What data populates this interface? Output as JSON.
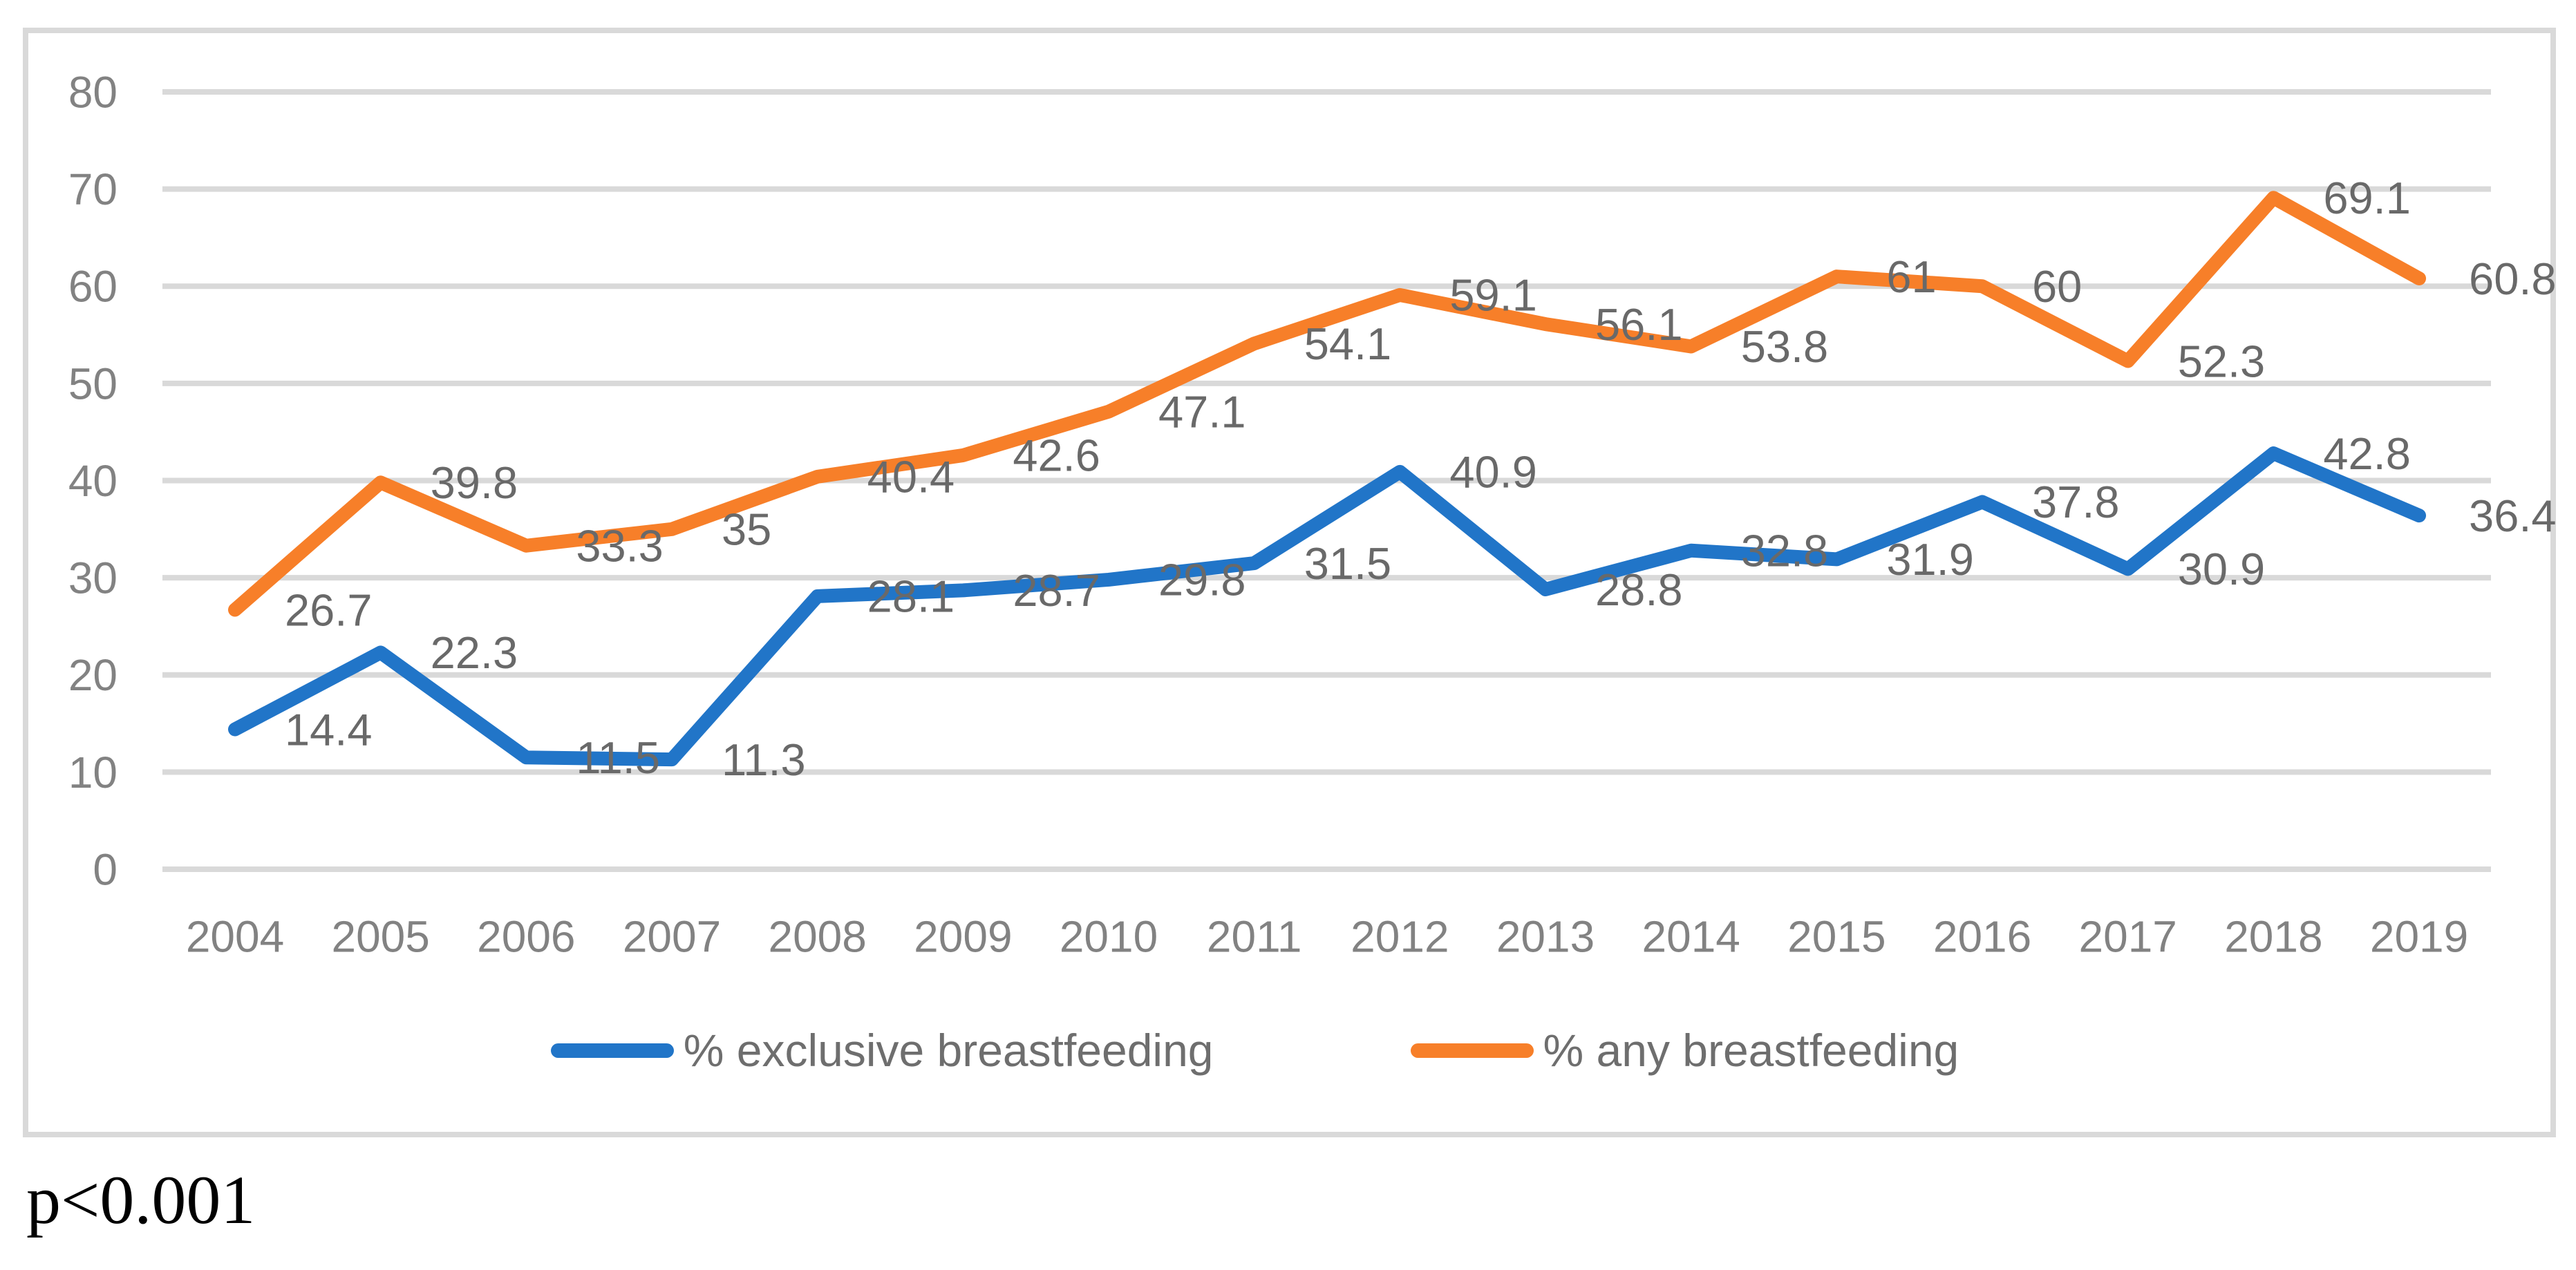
{
  "figure": {
    "p_value_note": "p<0.001"
  },
  "chart_data": {
    "type": "line",
    "title": "",
    "xlabel": "",
    "ylabel": "",
    "categories": [
      "2004",
      "2005",
      "2006",
      "2007",
      "2008",
      "2009",
      "2010",
      "2011",
      "2012",
      "2013",
      "2014",
      "2015",
      "2016",
      "2017",
      "2018",
      "2019"
    ],
    "series": [
      {
        "name": "% exclusive breastfeeding",
        "color": "#2175C8",
        "values": [
          14.4,
          22.3,
          11.5,
          11.3,
          28.1,
          28.7,
          29.8,
          31.5,
          40.9,
          28.8,
          32.8,
          31.9,
          37.8,
          30.9,
          42.8,
          36.4
        ]
      },
      {
        "name": "% any breastfeeding",
        "color": "#F77F29",
        "values": [
          26.7,
          39.8,
          33.3,
          35,
          40.4,
          42.6,
          47.1,
          54.1,
          59.1,
          56.1,
          53.8,
          61,
          60,
          52.3,
          69.1,
          60.8
        ]
      }
    ],
    "ylim": [
      0,
      80
    ],
    "yticks": [
      0,
      10,
      20,
      30,
      40,
      50,
      60,
      70,
      80
    ],
    "grid": "horizontal",
    "gridline_color": "#D9D9D9",
    "axis_text_color": "#828282",
    "data_label_color": "#696969",
    "data_labels": true,
    "legend_position": "bottom",
    "annotation": "p<0.001"
  }
}
